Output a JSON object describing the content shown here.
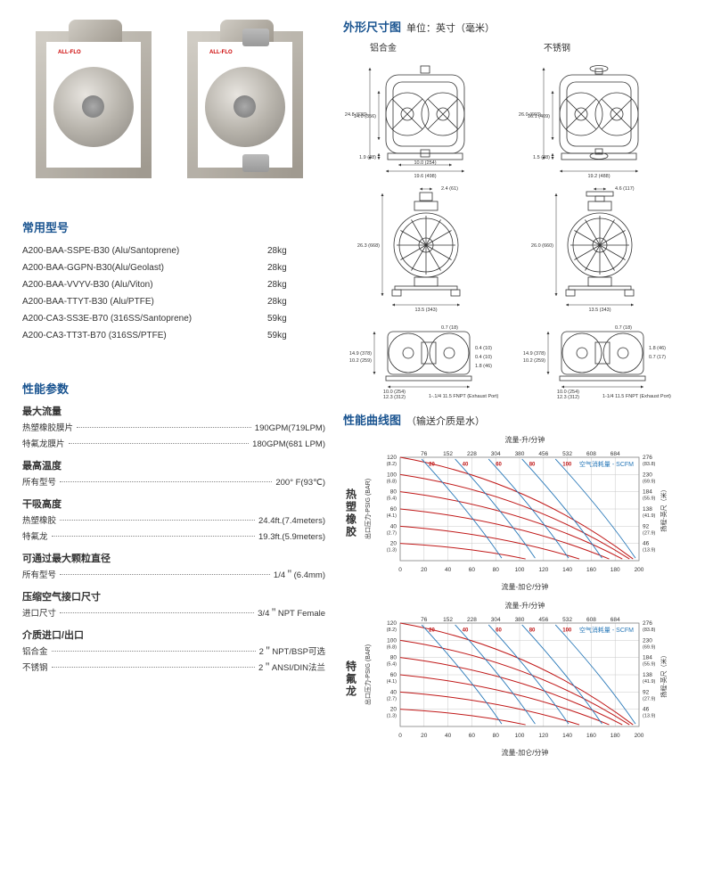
{
  "brand": "ALL-FLO",
  "models": {
    "header": "常用型号",
    "rows": [
      {
        "name": "A200-BAA-SSPE-B30 (Alu/Santoprene)",
        "weight": "28kg"
      },
      {
        "name": "A200-BAA-GGPN-B30(Alu/Geolast)",
        "weight": "28kg"
      },
      {
        "name": "A200-BAA-VVYV-B30 (Alu/Viton)",
        "weight": "28kg"
      },
      {
        "name": "A200-BAA-TTYT-B30 (Alu/PTFE)",
        "weight": "28kg"
      },
      {
        "name": "A200-CA3-SS3E-B70  (316SS/Santoprene)",
        "weight": "59kg"
      },
      {
        "name": "A200-CA3-TT3T-B70 (316SS/PTFE)",
        "weight": "59kg"
      }
    ]
  },
  "specs": {
    "header": "性能参数",
    "groups": [
      {
        "label": "最大流量",
        "rows": [
          {
            "name": "热塑橡胶膜片",
            "value": "190GPM(719LPM)"
          },
          {
            "name": "特氟龙膜片",
            "value": "180GPM(681 LPM)"
          }
        ]
      },
      {
        "label": "最高温度",
        "rows": [
          {
            "name": "所有型号",
            "value": "200° F(93℃)"
          }
        ]
      },
      {
        "label": "干吸高度",
        "rows": [
          {
            "name": "热塑橡胶",
            "value": "24.4ft.(7.4meters)"
          },
          {
            "name": "特氟龙",
            "value": "19.3ft.(5.9meters)"
          }
        ]
      },
      {
        "label": "可通过最大颗粒直径",
        "rows": [
          {
            "name": "所有型号",
            "value": "1/4＂(6.4mm)"
          }
        ]
      },
      {
        "label": "压缩空气接口尺寸",
        "rows": [
          {
            "name": "进口尺寸",
            "value": "3/4＂NPT Female"
          }
        ]
      },
      {
        "label": "介质进口/出口",
        "rows": [
          {
            "name": "铝合金",
            "value": "2＂NPT/BSP可选"
          },
          {
            "name": "不锈钢",
            "value": "2＂ANSI/DIN法兰"
          }
        ]
      }
    ]
  },
  "dimensions": {
    "header": "外形尺寸图",
    "unit_label": "单位：英寸（毫米）",
    "col_titles": [
      "铝合金",
      "不锈钢"
    ],
    "alu": {
      "height": "24.8 (630)",
      "inner_h": "14.0 (356)",
      "base_h": "1.9 (48)",
      "full_w": "19.6 (498)",
      "inner_w": "10.0 (254)",
      "side_h": "26.3 (668)",
      "side_w": "13.5 (343)",
      "top_w": "2.4 (61)",
      "plan_h": "14.9 (378)",
      "plan_h2": "10.2 (259)",
      "plan_w": "10.0 (254)",
      "plan_w2": "12.3 (312)",
      "port1": "0.7 (18)",
      "port2": "0.4 (10)",
      "port3": "0.4 (10)",
      "port4": "1.8 (46)",
      "exhaust": "1-.1/4  11.5 FNPT (Exhaust Port)"
    },
    "ss": {
      "height": "26.0 (660)",
      "inner_h": "16.1 (409)",
      "base_h": "1.5 (38)",
      "full_w": "19.2 (488)",
      "side_h": "26.0 (660)",
      "side_w": "13.5 (343)",
      "top_w": "4.6 (117)",
      "plan_h": "14.9 (378)",
      "plan_h2": "10.2 (259)",
      "plan_w": "10.0 (254)",
      "plan_w2": "12.3 (312)",
      "port1": "0.7 (18)",
      "port2": "1.8 (46)",
      "port3": "0.7 (17)",
      "exhaust": "1-1/4 11.5 FNPT (Exhaust Port)"
    }
  },
  "performance": {
    "header": "性能曲线图",
    "note": "（输送介质是水）",
    "charts": [
      {
        "title": "热塑橡胶"
      },
      {
        "title": "特氟龙"
      }
    ],
    "axis": {
      "top_label": "流量-升/分钟",
      "bottom_label": "流量-加仑/分钟",
      "y_left_label": "出口压力-PSIG (BAR)",
      "y_right_label": "扬程-英尺（米）",
      "scfm_label": "空气消耗量 - SCFM",
      "x_gpm": [
        0,
        20,
        40,
        60,
        80,
        100,
        120,
        140,
        160,
        180,
        200
      ],
      "x_lpm": [
        76,
        152,
        228,
        304,
        380,
        456,
        532,
        608,
        684
      ],
      "y_psig": [
        {
          "p": 120,
          "b": "8.2"
        },
        {
          "p": 100,
          "b": "6.8"
        },
        {
          "p": 80,
          "b": "5.4"
        },
        {
          "p": 60,
          "b": "4.1"
        },
        {
          "p": 40,
          "b": "2.7"
        },
        {
          "p": 20,
          "b": "1.3"
        }
      ],
      "y_ft": [
        {
          "f": 276,
          "m": "83.8"
        },
        {
          "f": 230,
          "m": "69.9"
        },
        {
          "f": 184,
          "m": "55.9"
        },
        {
          "f": 138,
          "m": "41.9"
        },
        {
          "f": 92,
          "m": "27.9"
        },
        {
          "f": 46,
          "m": "13.9"
        }
      ],
      "scfm_vals": [
        20,
        40,
        60,
        80,
        100
      ]
    },
    "colors": {
      "grid": "#c8c8c8",
      "press_curve": "#c01818",
      "scfm_curve": "#2878b8",
      "scfm_label_color": "#2878b8",
      "scfm_val_color": "#c01818",
      "axis_text": "#333333"
    }
  }
}
